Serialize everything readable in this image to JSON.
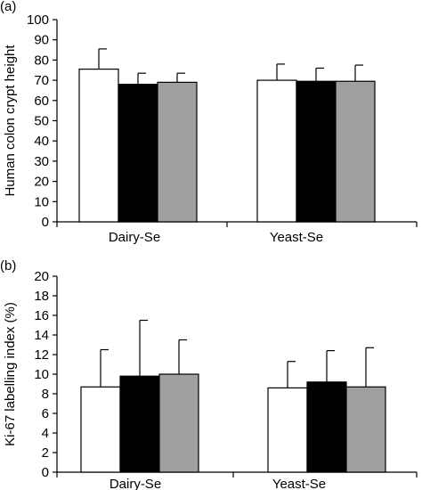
{
  "chart_data": [
    {
      "type": "bar",
      "panel_label": "(a)",
      "ylabel": "Human colon crypt height",
      "ylim": [
        0,
        100
      ],
      "yticks": [
        0,
        10,
        20,
        30,
        40,
        50,
        60,
        70,
        80,
        90,
        100
      ],
      "categories": [
        "Dairy-Se",
        "Yeast-Se"
      ],
      "series": [
        {
          "color": "#ffffff",
          "values": [
            75.5,
            70.0
          ],
          "errors": [
            10.0,
            8.0
          ]
        },
        {
          "color": "#000000",
          "values": [
            68.0,
            69.5
          ],
          "errors": [
            5.5,
            6.5
          ]
        },
        {
          "color": "#a0a0a0",
          "values": [
            69.0,
            69.5
          ],
          "errors": [
            4.5,
            8.0
          ]
        }
      ],
      "grid": false,
      "legend": "none"
    },
    {
      "type": "bar",
      "panel_label": "(b)",
      "ylabel": "Ki-67 labelling index (%)",
      "ylim": [
        0,
        20
      ],
      "yticks": [
        0,
        2,
        4,
        6,
        8,
        10,
        12,
        14,
        16,
        18,
        20
      ],
      "categories": [
        "Dairy-Se",
        "Yeast-Se"
      ],
      "series": [
        {
          "color": "#ffffff",
          "values": [
            8.7,
            8.6
          ],
          "errors": [
            3.8,
            2.7
          ]
        },
        {
          "color": "#000000",
          "values": [
            9.8,
            9.2
          ],
          "errors": [
            5.7,
            3.2
          ]
        },
        {
          "color": "#a0a0a0",
          "values": [
            10.0,
            8.7
          ],
          "errors": [
            3.5,
            4.0
          ]
        }
      ],
      "grid": false,
      "legend": "none"
    }
  ]
}
